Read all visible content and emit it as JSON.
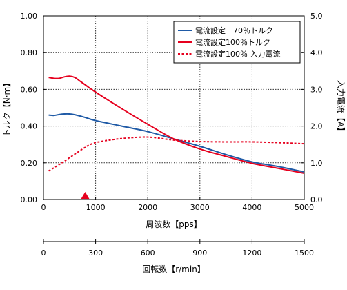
{
  "chart_data": {
    "type": "line",
    "x_axis": {
      "label": "周波数【pps】",
      "range": [
        0,
        5000
      ],
      "ticks": [
        0,
        1000,
        2000,
        3000,
        4000,
        5000
      ],
      "tick_labels": [
        "0",
        "1000",
        "2000",
        "3000",
        "4000",
        "5000"
      ]
    },
    "y_left": {
      "label": "トルク【N·m】",
      "range": [
        0,
        1.0
      ],
      "ticks": [
        0,
        0.2,
        0.4,
        0.6,
        0.8,
        1.0
      ],
      "tick_labels": [
        "0.00",
        "0.20",
        "0.40",
        "0.60",
        "0.80",
        "1.00"
      ]
    },
    "y_right": {
      "label": "入力電流【A】",
      "range": [
        0,
        5.0
      ],
      "ticks": [
        0,
        1,
        2,
        3,
        4,
        5
      ],
      "tick_labels": [
        "0.0",
        "1.0",
        "2.0",
        "3.0",
        "4.0",
        "5.0"
      ]
    },
    "secondary_axis": {
      "label": "回転数【r/min】",
      "range": [
        0,
        1500
      ],
      "ticks": [
        0,
        300,
        600,
        900,
        1200,
        1500
      ],
      "tick_labels": [
        "0",
        "300",
        "600",
        "900",
        "1200",
        "1500"
      ]
    },
    "grid": true,
    "legend_position": "top-right",
    "marker": {
      "type": "triangle",
      "x": 800,
      "color": "#e6001e"
    },
    "series": [
      {
        "name": "電流設定　70％トルク",
        "color": "#1f5aa6",
        "axis": "left",
        "style": "solid",
        "x": [
          100,
          200,
          300,
          400,
          500,
          600,
          700,
          800,
          1000,
          1500,
          2000,
          2500,
          3000,
          3500,
          4000,
          4500,
          5000
        ],
        "y": [
          0.46,
          0.458,
          0.463,
          0.466,
          0.466,
          0.462,
          0.455,
          0.447,
          0.43,
          0.4,
          0.37,
          0.33,
          0.29,
          0.245,
          0.205,
          0.18,
          0.15
        ]
      },
      {
        "name": "電流設定100％トルク",
        "color": "#e6001e",
        "axis": "left",
        "style": "solid",
        "x": [
          100,
          200,
          300,
          400,
          500,
          600,
          700,
          800,
          1000,
          1500,
          2000,
          2500,
          3000,
          3500,
          4000,
          4500,
          5000
        ],
        "y": [
          0.665,
          0.66,
          0.66,
          0.668,
          0.672,
          0.665,
          0.645,
          0.625,
          0.585,
          0.495,
          0.41,
          0.33,
          0.275,
          0.235,
          0.197,
          0.17,
          0.143
        ]
      },
      {
        "name": "電流設定100％ 入力電流",
        "color": "#e6001e",
        "axis": "right",
        "style": "dotted",
        "x": [
          100,
          300,
          500,
          700,
          900,
          1100,
          1500,
          2000,
          2500,
          3000,
          3500,
          4000,
          4500,
          5000
        ],
        "y": [
          0.78,
          0.95,
          1.14,
          1.33,
          1.5,
          1.58,
          1.66,
          1.7,
          1.62,
          1.58,
          1.57,
          1.57,
          1.55,
          1.52
        ]
      }
    ]
  }
}
